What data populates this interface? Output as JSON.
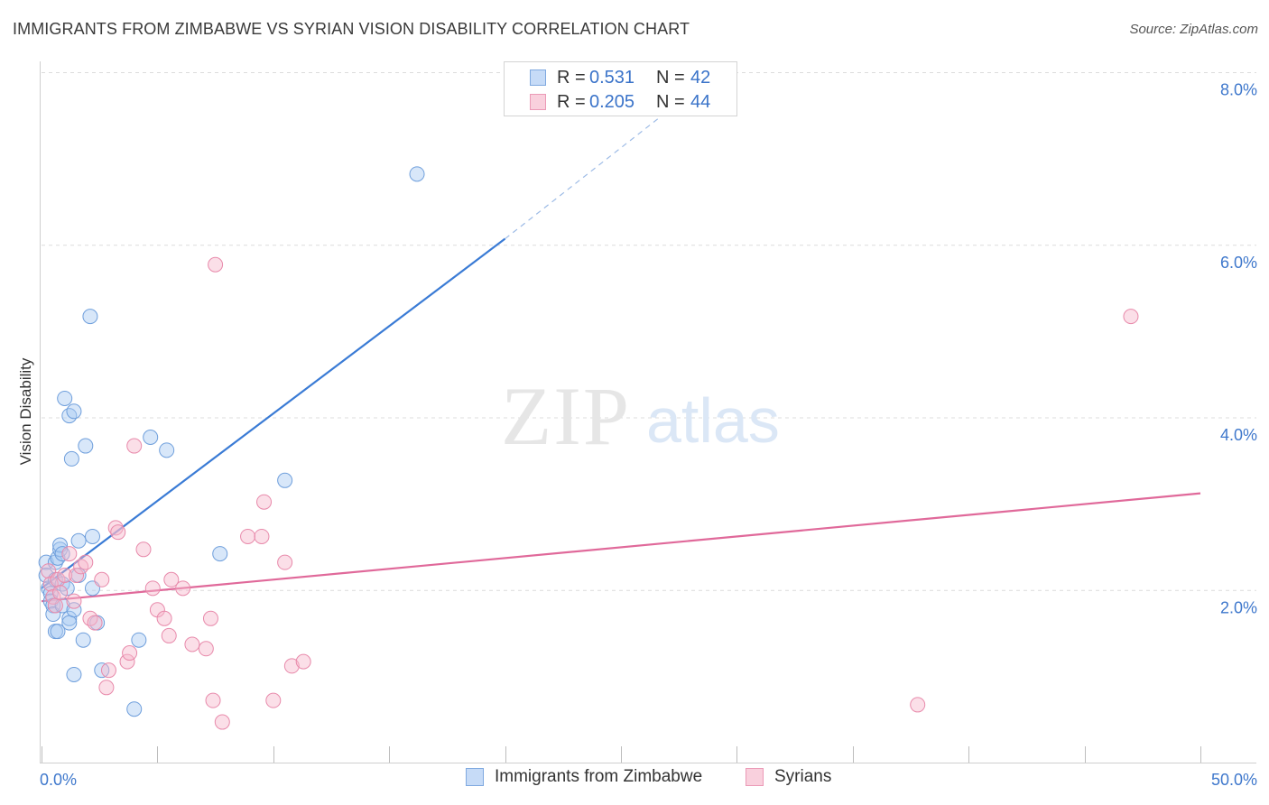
{
  "title": "IMMIGRANTS FROM ZIMBABWE VS SYRIAN VISION DISABILITY CORRELATION CHART",
  "source": "Source: ZipAtlas.com",
  "watermark": {
    "zip": "ZIP",
    "atlas": "atlas"
  },
  "legend_top": [
    {
      "r_label": "R =",
      "r_value": "0.531",
      "n_label": "N =",
      "n_value": "42",
      "color": "#a9c9f2"
    },
    {
      "r_label": "R =",
      "r_value": "0.205",
      "n_label": "N =",
      "n_value": "44",
      "color": "#f6b9cd"
    }
  ],
  "legend_bottom": [
    {
      "label": "Immigrants from Zimbabwe",
      "color": "#a9c9f2"
    },
    {
      "label": "Syrians",
      "color": "#f6b9cd"
    }
  ],
  "chart_data": {
    "type": "scatter",
    "title": "IMMIGRANTS FROM ZIMBABWE VS SYRIAN VISION DISABILITY CORRELATION CHART",
    "xlabel": "",
    "ylabel": "Vision Disability",
    "xlim": [
      0,
      50
    ],
    "ylim": [
      0,
      8.0
    ],
    "x_tick_labels": [
      "0.0%",
      "50.0%"
    ],
    "y_ticks": [
      2.0,
      4.0,
      6.0,
      8.0
    ],
    "y_tick_labels": [
      "2.0%",
      "4.0%",
      "6.0%",
      "8.0%"
    ],
    "grid": true,
    "series": [
      {
        "name": "Immigrants from Zimbabwe",
        "color": "#a9c9f2",
        "stroke": "#6f9fdc",
        "line_color": "#3a7bd5",
        "points": [
          [
            0.2,
            2.32
          ],
          [
            0.2,
            2.17
          ],
          [
            0.3,
            2.02
          ],
          [
            0.4,
            1.96
          ],
          [
            0.4,
            1.87
          ],
          [
            0.5,
            1.82
          ],
          [
            0.5,
            1.72
          ],
          [
            0.6,
            1.52
          ],
          [
            0.6,
            2.32
          ],
          [
            0.6,
            2.12
          ],
          [
            0.7,
            1.52
          ],
          [
            0.7,
            2.37
          ],
          [
            0.8,
            2.47
          ],
          [
            0.8,
            2.52
          ],
          [
            0.9,
            2.07
          ],
          [
            0.9,
            2.42
          ],
          [
            0.9,
            1.82
          ],
          [
            1.0,
            4.22
          ],
          [
            1.1,
            2.02
          ],
          [
            1.2,
            1.67
          ],
          [
            1.2,
            1.62
          ],
          [
            1.2,
            4.02
          ],
          [
            1.4,
            4.07
          ],
          [
            1.3,
            3.52
          ],
          [
            1.4,
            1.02
          ],
          [
            1.4,
            1.77
          ],
          [
            1.6,
            2.57
          ],
          [
            1.6,
            2.17
          ],
          [
            1.8,
            1.42
          ],
          [
            1.9,
            3.67
          ],
          [
            2.1,
            5.17
          ],
          [
            2.2,
            2.62
          ],
          [
            2.4,
            1.62
          ],
          [
            2.6,
            1.07
          ],
          [
            4.0,
            0.62
          ],
          [
            4.2,
            1.42
          ],
          [
            4.7,
            3.77
          ],
          [
            5.4,
            3.62
          ],
          [
            7.7,
            2.42
          ],
          [
            10.5,
            3.27
          ],
          [
            16.2,
            6.82
          ],
          [
            2.2,
            2.02
          ]
        ],
        "trend": {
          "x0": 0,
          "y0": 2.02,
          "x1": 20,
          "y1": 6.07,
          "dashed_to_x": 28.3,
          "dashed_to_y": 7.82
        }
      },
      {
        "name": "Syrians",
        "color": "#f6b9cd",
        "stroke": "#e88aab",
        "line_color": "#e0699a",
        "points": [
          [
            0.3,
            2.22
          ],
          [
            0.4,
            2.07
          ],
          [
            0.5,
            1.92
          ],
          [
            0.6,
            1.82
          ],
          [
            0.7,
            2.12
          ],
          [
            0.8,
            1.97
          ],
          [
            1.0,
            2.17
          ],
          [
            1.2,
            2.42
          ],
          [
            1.4,
            1.87
          ],
          [
            1.5,
            2.17
          ],
          [
            1.7,
            2.27
          ],
          [
            1.9,
            2.32
          ],
          [
            2.1,
            1.67
          ],
          [
            2.3,
            1.62
          ],
          [
            2.6,
            2.12
          ],
          [
            2.8,
            0.87
          ],
          [
            2.9,
            1.07
          ],
          [
            3.2,
            2.72
          ],
          [
            3.3,
            2.67
          ],
          [
            3.7,
            1.17
          ],
          [
            3.8,
            1.27
          ],
          [
            4.0,
            3.67
          ],
          [
            4.4,
            2.47
          ],
          [
            4.8,
            2.02
          ],
          [
            5.0,
            1.77
          ],
          [
            5.3,
            1.67
          ],
          [
            5.5,
            1.47
          ],
          [
            5.6,
            2.12
          ],
          [
            6.1,
            2.02
          ],
          [
            6.5,
            1.37
          ],
          [
            7.1,
            1.32
          ],
          [
            7.3,
            1.67
          ],
          [
            7.4,
            0.72
          ],
          [
            7.5,
            5.77
          ],
          [
            7.8,
            0.47
          ],
          [
            8.9,
            2.62
          ],
          [
            9.5,
            2.62
          ],
          [
            9.6,
            3.02
          ],
          [
            10.0,
            0.72
          ],
          [
            10.5,
            2.32
          ],
          [
            10.8,
            1.12
          ],
          [
            11.3,
            1.17
          ],
          [
            37.8,
            0.67
          ],
          [
            47.0,
            5.17
          ]
        ],
        "trend": {
          "x0": 0,
          "y0": 1.87,
          "x1": 50,
          "y1": 3.12
        }
      }
    ]
  }
}
